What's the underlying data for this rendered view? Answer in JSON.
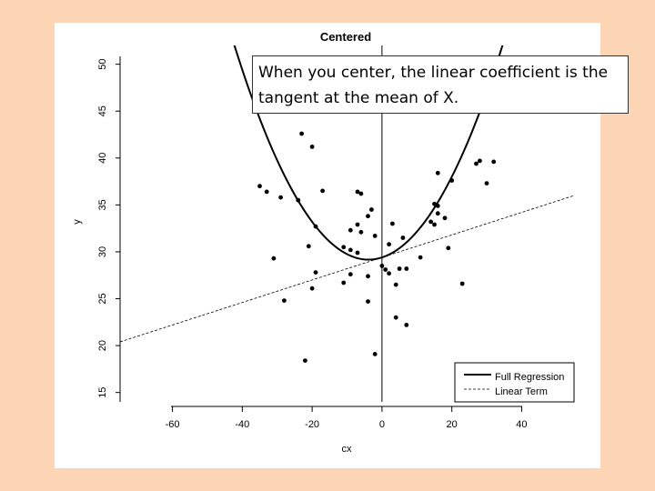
{
  "slide": {
    "background": "#fcd5b4",
    "panel": "#ffffff"
  },
  "callout": {
    "text": "When you center, the linear coefficient is the tangent at the mean of X."
  },
  "chart_data": {
    "type": "scatter",
    "title": "Centered",
    "xlabel": "cx",
    "ylabel": "y",
    "xlim": [
      -75,
      55
    ],
    "ylim": [
      14,
      52
    ],
    "x_ticks": [
      -60,
      -40,
      -20,
      0,
      20,
      40
    ],
    "y_ticks": [
      15,
      20,
      25,
      30,
      35,
      40,
      45,
      50
    ],
    "reference_line": {
      "x": 0
    },
    "points": [
      [
        -35,
        37
      ],
      [
        -33,
        36.4
      ],
      [
        -29,
        35.8
      ],
      [
        -24,
        35.5
      ],
      [
        -31,
        29.3
      ],
      [
        -28,
        24.8
      ],
      [
        -23,
        42.6
      ],
      [
        -20,
        41.2
      ],
      [
        -17,
        36.5
      ],
      [
        -19,
        32.7
      ],
      [
        -21,
        30.6
      ],
      [
        -19,
        27.8
      ],
      [
        -20,
        26.1
      ],
      [
        -22,
        18.4
      ],
      [
        -11,
        30.5
      ],
      [
        -9,
        32.3
      ],
      [
        -7,
        32.9
      ],
      [
        -6,
        36.2
      ],
      [
        -7,
        36.4
      ],
      [
        -4,
        33.8
      ],
      [
        -3,
        34.5
      ],
      [
        -6,
        32.1
      ],
      [
        -9,
        30.2
      ],
      [
        -7,
        29.9
      ],
      [
        -2,
        31.7
      ],
      [
        -11,
        26.7
      ],
      [
        -9,
        27.6
      ],
      [
        -4,
        27.4
      ],
      [
        -4,
        24.7
      ],
      [
        -2,
        19.1
      ],
      [
        1,
        28.1
      ],
      [
        2,
        27.7
      ],
      [
        4,
        26.5
      ],
      [
        5,
        28.2
      ],
      [
        7,
        28.2
      ],
      [
        2,
        30.8
      ],
      [
        3,
        33
      ],
      [
        6,
        31.5
      ],
      [
        4,
        23
      ],
      [
        7,
        22.2
      ],
      [
        11,
        29.4
      ],
      [
        14,
        33.2
      ],
      [
        15,
        32.9
      ],
      [
        15,
        35.1
      ],
      [
        16,
        34.9
      ],
      [
        16,
        34.1
      ],
      [
        16,
        38.4
      ],
      [
        18,
        33.6
      ],
      [
        19,
        30.4
      ],
      [
        20,
        37.6
      ],
      [
        27,
        39.4
      ],
      [
        28,
        39.7
      ],
      [
        30,
        37.3
      ],
      [
        32,
        39.6
      ],
      [
        23,
        26.6
      ],
      [
        0,
        28.5
      ]
    ],
    "series": [
      {
        "name": "Full Regression",
        "type": "curve",
        "style": "solid",
        "b0": 29.4,
        "b1": 0.12,
        "b2": 0.0155,
        "color": "#000000"
      },
      {
        "name": "Linear Term",
        "type": "line",
        "style": "dashed",
        "b0": 29.4,
        "b1": 0.12,
        "color": "#000000"
      }
    ],
    "legend": {
      "position": "bottom-right"
    },
    "colors": {
      "points": "#000000",
      "axes": "#000000"
    }
  }
}
